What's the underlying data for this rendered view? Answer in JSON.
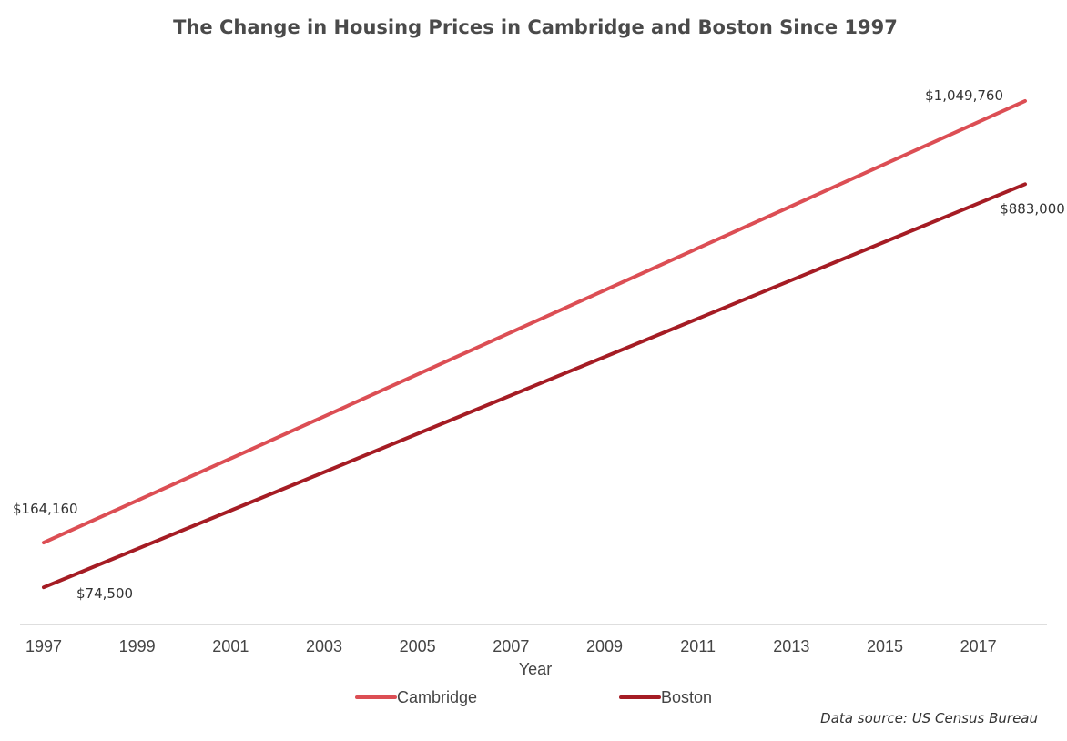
{
  "chart_data": {
    "type": "line",
    "title": "The Change in Housing Prices in Cambridge and Boston Since 1997",
    "xlabel": "Year",
    "ylabel": "",
    "x": [
      1997,
      2018
    ],
    "xlim": [
      1997,
      2018
    ],
    "ylim": [
      0,
      1150000
    ],
    "x_tick_labels": [
      "1997",
      "1999",
      "2001",
      "2003",
      "2005",
      "2007",
      "2009",
      "2011",
      "2013",
      "2015",
      "2017"
    ],
    "grid": false,
    "legend": "bottom",
    "series": [
      {
        "name": "Cambridge",
        "color": "#dc4e54",
        "values": [
          164160,
          1049760
        ]
      },
      {
        "name": "Boston",
        "color": "#a51c24",
        "values": [
          74500,
          883000
        ]
      }
    ],
    "annotations": [
      {
        "series": "Cambridge",
        "x": 1997,
        "text": "$164,160"
      },
      {
        "series": "Cambridge",
        "x": 2018,
        "text": "$1,049,760"
      },
      {
        "series": "Boston",
        "x": 1997,
        "text": "$74,500"
      },
      {
        "series": "Boston",
        "x": 2018,
        "text": "$883,000"
      }
    ]
  },
  "source_note": "Data source: US Census Bureau"
}
